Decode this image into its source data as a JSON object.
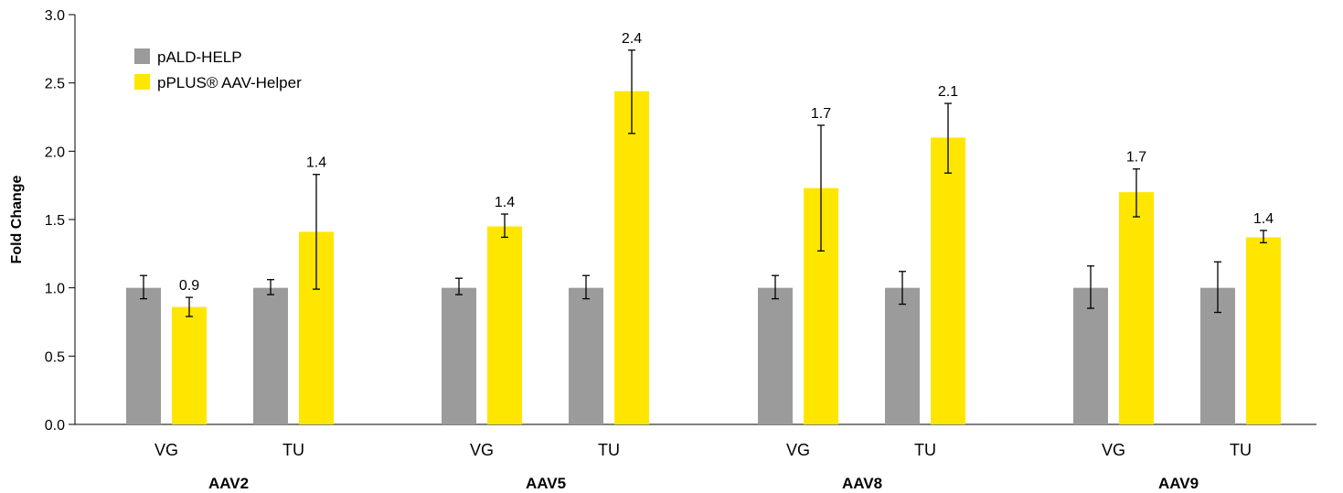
{
  "chart_data": {
    "type": "bar",
    "ylabel": "Fold Change",
    "ylim": [
      0,
      3.0
    ],
    "yticks": [
      "0.0",
      "0.5",
      "1.0",
      "1.5",
      "2.0",
      "2.5",
      "3.0"
    ],
    "groups": [
      {
        "name": "AAV2",
        "subcategories": [
          "VG",
          "TU"
        ]
      },
      {
        "name": "AAV5",
        "subcategories": [
          "VG",
          "TU"
        ]
      },
      {
        "name": "AAV8",
        "subcategories": [
          "VG",
          "TU"
        ]
      },
      {
        "name": "AAV9",
        "subcategories": [
          "VG",
          "TU"
        ]
      }
    ],
    "categories": [
      "AAV2 VG",
      "AAV2 TU",
      "AAV5 VG",
      "AAV5 TU",
      "AAV8 VG",
      "AAV8 TU",
      "AAV9 VG",
      "AAV9 TU"
    ],
    "series": [
      {
        "name": "pALD-HELP",
        "color": "#9b9b9b",
        "values": [
          1.0,
          1.0,
          1.0,
          1.0,
          1.0,
          1.0,
          1.0,
          1.0
        ],
        "error_low": [
          0.92,
          0.95,
          0.95,
          0.92,
          0.92,
          0.88,
          0.85,
          0.82
        ],
        "error_high": [
          1.09,
          1.06,
          1.07,
          1.09,
          1.09,
          1.12,
          1.16,
          1.19
        ],
        "labels": [
          "",
          "",
          "",
          "",
          "",
          "",
          "",
          ""
        ]
      },
      {
        "name": "pPLUS® AAV-Helper",
        "color": "#ffe600",
        "values": [
          0.86,
          1.41,
          1.45,
          2.44,
          1.73,
          2.1,
          1.7,
          1.37
        ],
        "error_low": [
          0.79,
          0.99,
          1.37,
          2.13,
          1.27,
          1.84,
          1.52,
          1.33
        ],
        "error_high": [
          0.93,
          1.83,
          1.54,
          2.74,
          2.19,
          2.35,
          1.87,
          1.42
        ],
        "labels": [
          "0.9",
          "1.4",
          "1.4",
          "2.4",
          "1.7",
          "2.1",
          "1.7",
          "1.4"
        ]
      }
    ],
    "legend": {
      "placement": "top-left"
    },
    "grid": false
  }
}
